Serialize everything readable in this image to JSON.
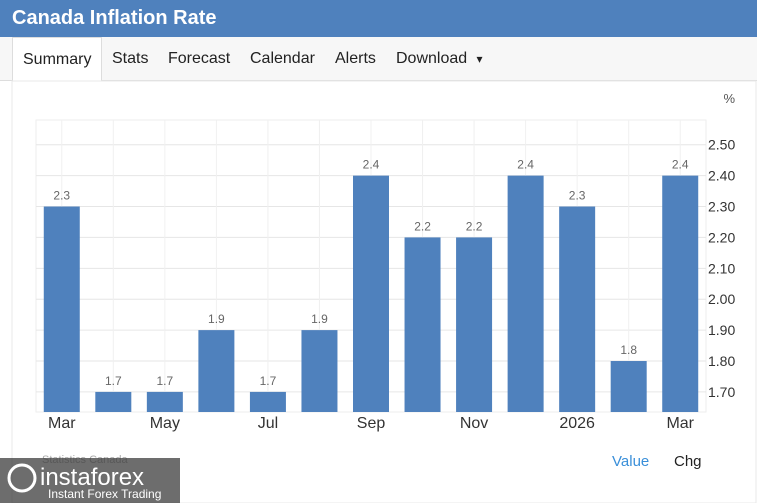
{
  "header": {
    "title": "Canada Inflation Rate"
  },
  "tabs": [
    "Summary",
    "Stats",
    "Forecast",
    "Calendar",
    "Alerts",
    "Download"
  ],
  "chart_data": {
    "type": "bar",
    "unit": "%",
    "categories": [
      "Mar",
      null,
      "May",
      null,
      "Jul",
      null,
      "Sep",
      null,
      "Nov",
      null,
      "2026",
      null,
      "Mar"
    ],
    "values": [
      2.3,
      1.7,
      1.7,
      1.9,
      1.7,
      1.9,
      2.4,
      2.2,
      2.2,
      2.4,
      2.3,
      1.8,
      2.4
    ],
    "color": "#4f81bd",
    "ylim": [
      1.635,
      2.58
    ],
    "yticks": [
      {
        "value": 1.7,
        "label": "1.70"
      },
      {
        "value": 1.8,
        "label": "1.80"
      },
      {
        "value": 1.9,
        "label": "1.90"
      },
      {
        "value": 2.0,
        "label": "2.00"
      },
      {
        "value": 2.1,
        "label": "2.10"
      },
      {
        "value": 2.2,
        "label": "2.20"
      },
      {
        "value": 2.3,
        "label": "2.30"
      },
      {
        "value": 2.4,
        "label": "2.40"
      },
      {
        "value": 2.5,
        "label": "2.50"
      }
    ],
    "grid": true,
    "source": "Statistics Canada"
  },
  "toggles": [
    "Value",
    "Chg"
  ],
  "watermark": {
    "brand": "instaforex",
    "tagline": "Instant Forex Trading"
  }
}
